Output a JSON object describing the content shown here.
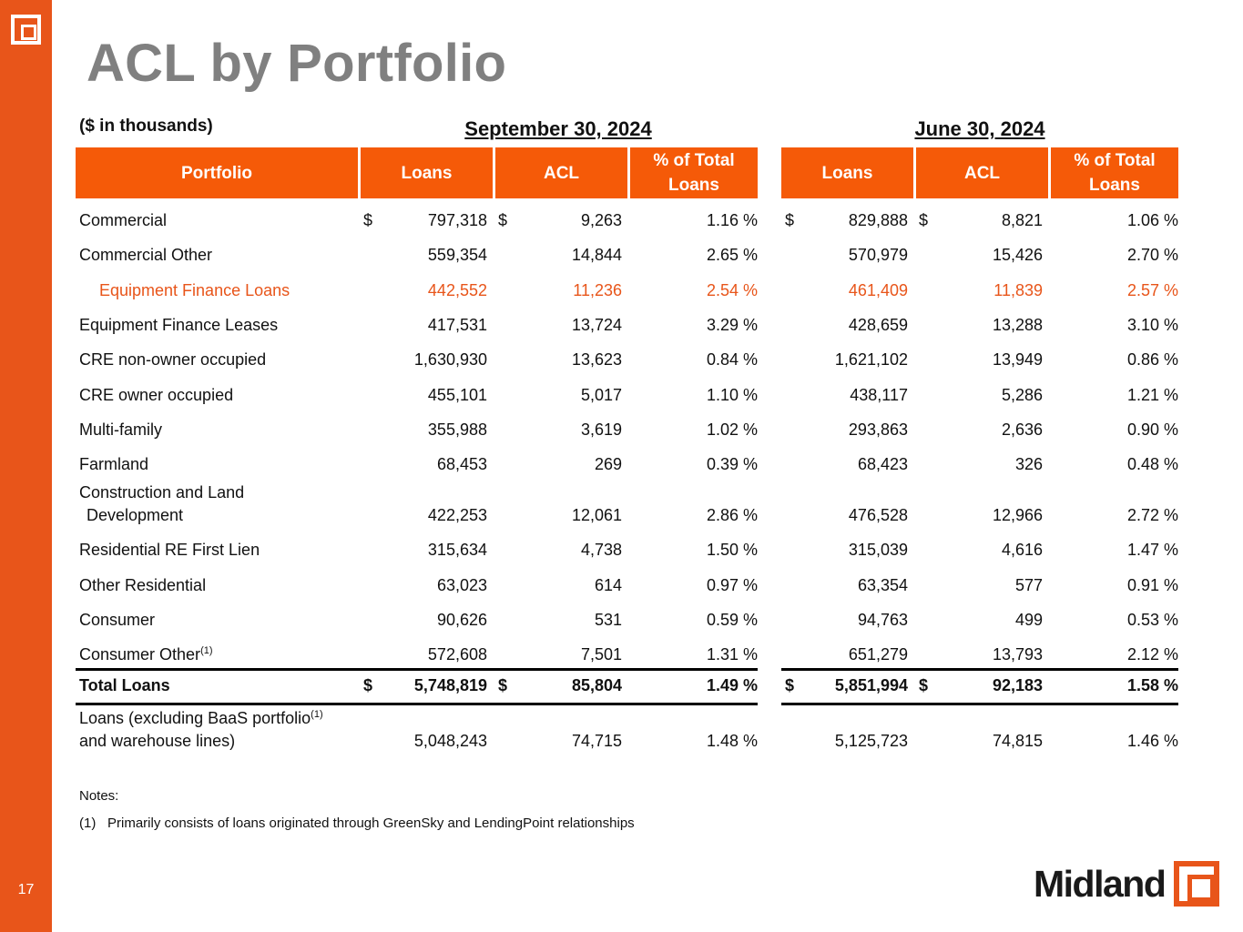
{
  "slide": {
    "title": "ACL by Portfolio",
    "page_number": "17"
  },
  "units": "($ in thousands)",
  "periods": [
    "September 30, 2024",
    "June 30, 2024"
  ],
  "headers": {
    "portfolio": "Portfolio",
    "loans": "Loans",
    "acl": "ACL",
    "pct_line1": "% of Total",
    "pct_line2": "Loans"
  },
  "rows": [
    {
      "label": "Commercial",
      "sep_loans": "797,318",
      "sep_acl": "9,263",
      "sep_pct": "1.16 %",
      "jun_loans": "829,888",
      "jun_acl": "8,821",
      "jun_pct": "1.06 %"
    },
    {
      "label": "Commercial Other",
      "sep_loans": "559,354",
      "sep_acl": "14,844",
      "sep_pct": "2.65 %",
      "jun_loans": "570,979",
      "jun_acl": "15,426",
      "jun_pct": "2.70 %"
    },
    {
      "label": "Equipment Finance Loans",
      "sep_loans": "442,552",
      "sep_acl": "11,236",
      "sep_pct": "2.54 %",
      "jun_loans": "461,409",
      "jun_acl": "11,839",
      "jun_pct": "2.57 %"
    },
    {
      "label": "Equipment Finance Leases",
      "sep_loans": "417,531",
      "sep_acl": "13,724",
      "sep_pct": "3.29 %",
      "jun_loans": "428,659",
      "jun_acl": "13,288",
      "jun_pct": "3.10 %"
    },
    {
      "label": "CRE non-owner occupied",
      "sep_loans": "1,630,930",
      "sep_acl": "13,623",
      "sep_pct": "0.84 %",
      "jun_loans": "1,621,102",
      "jun_acl": "13,949",
      "jun_pct": "0.86 %"
    },
    {
      "label": "CRE owner  occupied",
      "sep_loans": "455,101",
      "sep_acl": "5,017",
      "sep_pct": "1.10 %",
      "jun_loans": "438,117",
      "jun_acl": "5,286",
      "jun_pct": "1.21 %"
    },
    {
      "label": "Multi-family",
      "sep_loans": "355,988",
      "sep_acl": "3,619",
      "sep_pct": "1.02 %",
      "jun_loans": "293,863",
      "jun_acl": "2,636",
      "jun_pct": "0.90 %"
    },
    {
      "label": "Farmland",
      "sep_loans": "68,453",
      "sep_acl": "269",
      "sep_pct": "0.39 %",
      "jun_loans": "68,423",
      "jun_acl": "326",
      "jun_pct": "0.48 %"
    },
    {
      "label": "Construction and Land",
      "label_line2": "Development",
      "sep_loans": "422,253",
      "sep_acl": "12,061",
      "sep_pct": "2.86 %",
      "jun_loans": "476,528",
      "jun_acl": "12,966",
      "jun_pct": "2.72 %"
    },
    {
      "label": "Residential RE First Lien",
      "sep_loans": "315,634",
      "sep_acl": "4,738",
      "sep_pct": "1.50 %",
      "jun_loans": "315,039",
      "jun_acl": "4,616",
      "jun_pct": "1.47 %"
    },
    {
      "label": "Other Residential",
      "sep_loans": "63,023",
      "sep_acl": "614",
      "sep_pct": "0.97 %",
      "jun_loans": "63,354",
      "jun_acl": "577",
      "jun_pct": "0.91 %"
    },
    {
      "label": "Consumer",
      "sep_loans": "90,626",
      "sep_acl": "531",
      "sep_pct": "0.59 %",
      "jun_loans": "94,763",
      "jun_acl": "499",
      "jun_pct": "0.53 %"
    },
    {
      "label": "Consumer Other",
      "sup": "(1)",
      "sep_loans": "572,608",
      "sep_acl": "7,501",
      "sep_pct": "1.31 %",
      "jun_loans": "651,279",
      "jun_acl": "13,793",
      "jun_pct": "2.12 %"
    }
  ],
  "total": {
    "label": "Total Loans",
    "sep_loans": "5,748,819",
    "sep_acl": "85,804",
    "sep_pct": "1.49 %",
    "jun_loans": "5,851,994",
    "jun_acl": "92,183",
    "jun_pct": "1.58 %"
  },
  "excl": {
    "label_line1": "Loans (excluding BaaS portfolio",
    "sup": "(1)",
    "label_line2": "and warehouse lines)",
    "sep_loans": "5,048,243",
    "sep_acl": "74,715",
    "sep_pct": "1.48 %",
    "jun_loans": "5,125,723",
    "jun_acl": "74,815",
    "jun_pct": "1.46 %"
  },
  "currency_symbol": "$",
  "notes": {
    "title": "Notes:",
    "items": [
      {
        "num": "(1)",
        "text": "Primarily consists of loans originated through GreenSky and LendingPoint relationships"
      }
    ]
  },
  "brand": {
    "name": "Midland"
  },
  "colors": {
    "accent": "#e8551a",
    "header_fill": "#f55a08",
    "title_gray": "#808080"
  }
}
